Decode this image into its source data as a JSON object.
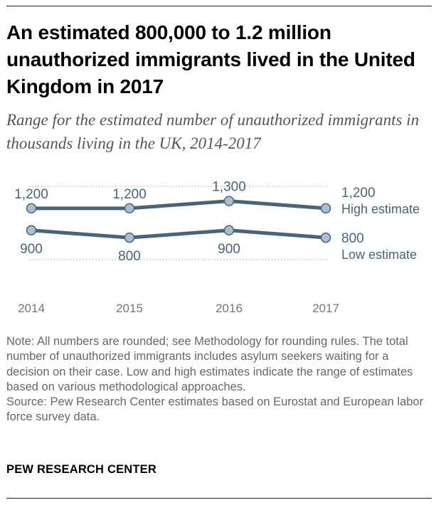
{
  "header": {
    "title": "An estimated 800,000 to 1.2 million unauthorized immigrants lived in the United Kingdom in 2017",
    "subtitle": "Range for the estimated number of unauthorized immigrants in thousands living in the UK, 2014-2017"
  },
  "chart_data": {
    "type": "line",
    "title": "An estimated 800,000 to 1.2 million unauthorized immigrants lived in the United Kingdom in 2017",
    "subtitle": "Range for the estimated number of unauthorized immigrants in thousands living in the UK, 2014-2017",
    "categories": [
      "2014",
      "2015",
      "2016",
      "2017"
    ],
    "series": [
      {
        "name": "High estimate",
        "values": [
          1200,
          1200,
          1300,
          1200
        ],
        "labels": [
          "1,200",
          "1,200",
          "1,300",
          "1,200"
        ],
        "label_position": "above"
      },
      {
        "name": "Low estimate",
        "values": [
          900,
          800,
          900,
          800
        ],
        "labels": [
          "900",
          "800",
          "900",
          "800"
        ],
        "label_position": "below"
      }
    ],
    "gridlines": [
      1500,
      500
    ],
    "ylim": [
      500,
      1500
    ],
    "units": "thousands",
    "xlabel": "",
    "ylabel": "",
    "colors": {
      "line": "#46647c",
      "marker_fill": "#a9bfcf",
      "text": "#46647c",
      "axis_text": "#777777",
      "grid": "#b5b5b5"
    }
  },
  "notes": {
    "note": "Note: All numbers are rounded; see Methodology for rounding rules. The total number of unauthorized immigrants includes asylum seekers waiting for a decision on their case. Low and high estimates indicate the range of estimates based on various methodological approaches.",
    "source": "Source: Pew Research Center estimates based on Eurostat and European labor force survey data."
  },
  "footer": {
    "brand": "PEW RESEARCH CENTER"
  }
}
